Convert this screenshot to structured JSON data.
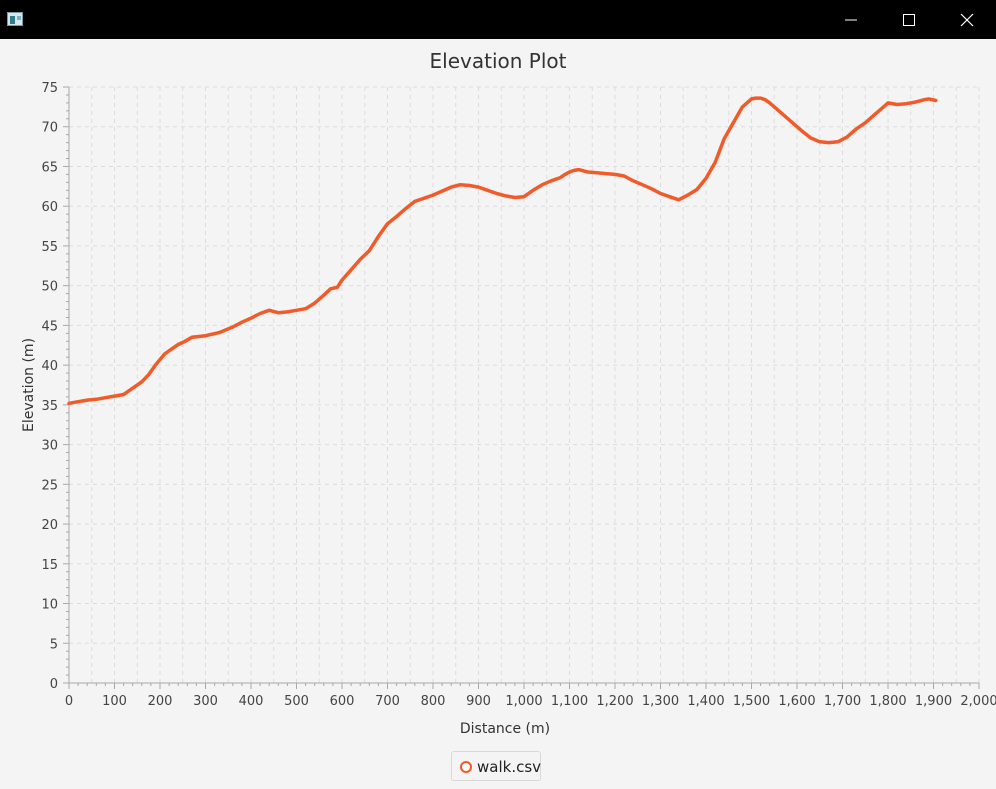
{
  "window": {
    "app_icon": "java-app-icon",
    "controls": [
      "minimize-icon",
      "maximize-icon",
      "close-icon"
    ]
  },
  "chart_data": {
    "type": "line",
    "title": "Elevation Plot",
    "xlabel": "Distance (m)",
    "ylabel": "Elevation (m)",
    "xlim": [
      0,
      2000
    ],
    "ylim": [
      0,
      75
    ],
    "x_ticks": [
      0,
      100,
      200,
      300,
      400,
      500,
      600,
      700,
      800,
      900,
      1000,
      1100,
      1200,
      1300,
      1400,
      1500,
      1600,
      1700,
      1800,
      1900,
      2000
    ],
    "x_tick_labels": [
      "0",
      "100",
      "200",
      "300",
      "400",
      "500",
      "600",
      "700",
      "800",
      "900",
      "1,000",
      "1,100",
      "1,200",
      "1,300",
      "1,400",
      "1,500",
      "1,600",
      "1,700",
      "1,800",
      "1,900",
      "2,000"
    ],
    "y_ticks": [
      0,
      5,
      10,
      15,
      20,
      25,
      30,
      35,
      40,
      45,
      50,
      55,
      60,
      65,
      70,
      75
    ],
    "grid": true,
    "legend_position": "bottom",
    "colors": {
      "series": "#f15a29",
      "grid": "#dcdcdc",
      "axis": "#a8a8a8"
    },
    "series": [
      {
        "name": "walk.csv",
        "x": [
          0,
          20,
          40,
          60,
          80,
          100,
          120,
          140,
          160,
          175,
          190,
          210,
          225,
          240,
          255,
          270,
          285,
          300,
          330,
          360,
          380,
          400,
          420,
          440,
          460,
          480,
          500,
          520,
          540,
          560,
          575,
          590,
          600,
          620,
          640,
          660,
          680,
          700,
          720,
          740,
          760,
          780,
          800,
          820,
          840,
          860,
          880,
          900,
          920,
          940,
          960,
          980,
          1000,
          1020,
          1040,
          1060,
          1080,
          1090,
          1100,
          1110,
          1120,
          1140,
          1160,
          1180,
          1200,
          1220,
          1240,
          1260,
          1280,
          1300,
          1320,
          1340,
          1360,
          1380,
          1400,
          1420,
          1440,
          1460,
          1480,
          1500,
          1510,
          1520,
          1530,
          1540,
          1550,
          1570,
          1590,
          1610,
          1630,
          1650,
          1670,
          1690,
          1710,
          1730,
          1750,
          1770,
          1790,
          1800,
          1820,
          1840,
          1860,
          1880,
          1890,
          1905
        ],
        "values": [
          35.2,
          35.4,
          35.6,
          35.7,
          35.9,
          36.1,
          36.3,
          37.1,
          37.9,
          38.8,
          40.0,
          41.4,
          42.0,
          42.6,
          43.0,
          43.5,
          43.6,
          43.7,
          44.1,
          44.8,
          45.4,
          45.9,
          46.5,
          46.9,
          46.6,
          46.7,
          46.9,
          47.1,
          47.8,
          48.8,
          49.6,
          49.8,
          50.7,
          52.0,
          53.3,
          54.4,
          56.2,
          57.8,
          58.7,
          59.7,
          60.6,
          61.0,
          61.4,
          61.9,
          62.4,
          62.7,
          62.6,
          62.4,
          62.0,
          61.6,
          61.3,
          61.1,
          61.2,
          62.0,
          62.7,
          63.2,
          63.6,
          64.0,
          64.3,
          64.5,
          64.6,
          64.3,
          64.2,
          64.1,
          64.0,
          63.8,
          63.2,
          62.7,
          62.2,
          61.6,
          61.2,
          60.8,
          61.4,
          62.1,
          63.5,
          65.5,
          68.5,
          70.5,
          72.5,
          73.5,
          73.6,
          73.6,
          73.4,
          73.0,
          72.5,
          71.5,
          70.5,
          69.5,
          68.6,
          68.1,
          68.0,
          68.1,
          68.7,
          69.7,
          70.5,
          71.5,
          72.5,
          73.0,
          72.8,
          72.9,
          73.1,
          73.4,
          73.5,
          73.3
        ]
      }
    ]
  }
}
